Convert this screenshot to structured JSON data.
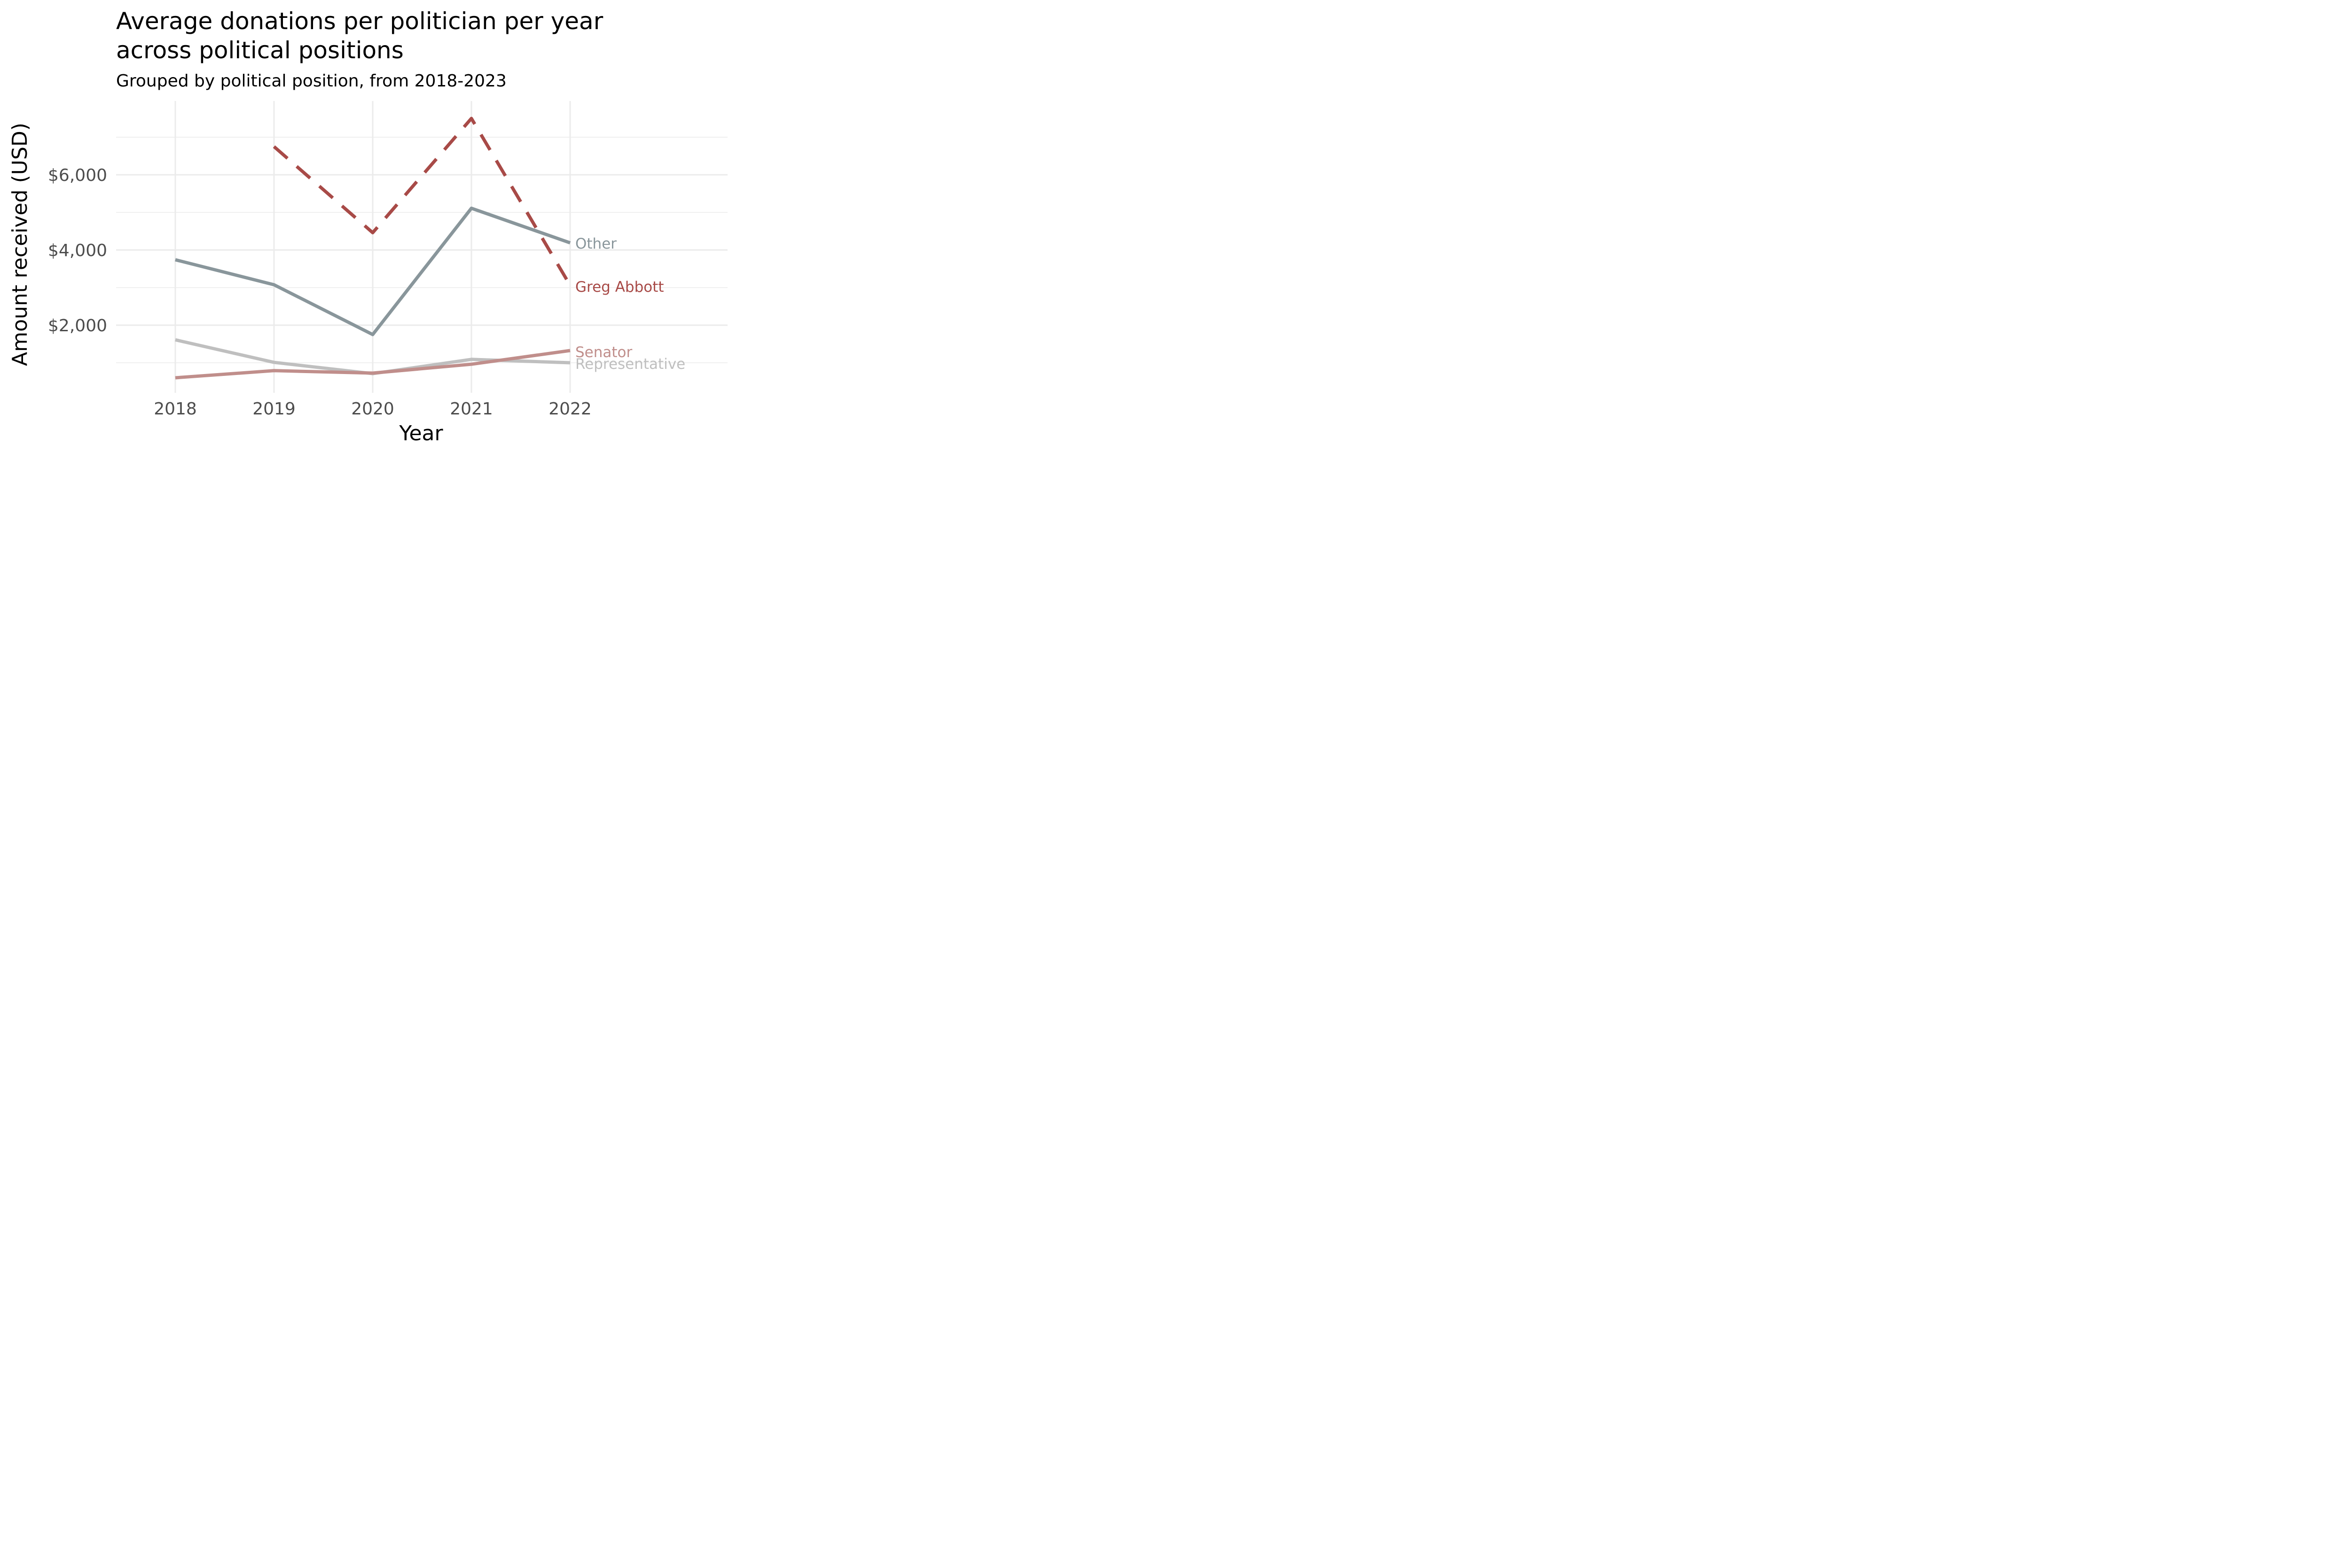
{
  "chart_data": {
    "type": "line",
    "title": "Average donations per politician per year across political positions",
    "title_lines": [
      "Average donations per politician per year",
      "across political positions"
    ],
    "subtitle": "Grouped by political position, from 2018-2023",
    "xlabel": "Year",
    "ylabel": "Amount received (USD)",
    "x": [
      2018,
      2019,
      2020,
      2021,
      2022
    ],
    "x_tick_labels": [
      "2018",
      "2019",
      "2020",
      "2021",
      "2022"
    ],
    "xlim": [
      2017.3,
      2023.6
    ],
    "ylim": [
      -80,
      7800
    ],
    "y_ticks": [
      2000,
      4000,
      6000
    ],
    "y_tick_labels": [
      "$2,000",
      "$4,000",
      "$6,000"
    ],
    "y_minor_ticks": [
      1000,
      3000,
      5000,
      7000
    ],
    "grid": true,
    "legend": "direct-labels-right",
    "series": [
      {
        "name": "Other",
        "color": "#89969b",
        "dashed": false,
        "values": [
          3740,
          3075,
          1750,
          5110,
          4190
        ]
      },
      {
        "name": "Greg Abbott",
        "color": "#a84a47",
        "dashed": true,
        "values": [
          null,
          6750,
          4460,
          7500,
          3060
        ]
      },
      {
        "name": "Senator",
        "color": "#c08e8b",
        "dashed": false,
        "values": [
          600,
          790,
          725,
          960,
          1325
        ]
      },
      {
        "name": "Representative",
        "color": "#bfbfbf",
        "dashed": false,
        "values": [
          1610,
          1010,
          710,
          1090,
          1000
        ]
      }
    ]
  }
}
